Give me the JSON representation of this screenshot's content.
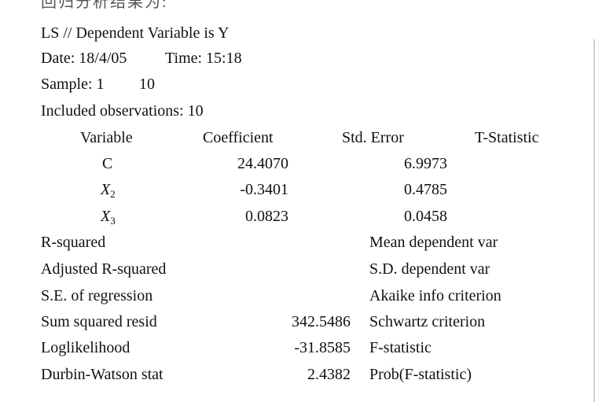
{
  "title": "回归分析结果为:",
  "header": {
    "method_line": "LS // Dependent Variable is Y",
    "date": "Date: 18/4/05",
    "time": "Time: 15:18",
    "sample_label": "Sample: 1",
    "sample_end": "10",
    "observations": "Included observations: 10"
  },
  "table": {
    "columns": [
      "Variable",
      "Coefficient",
      "Std. Error",
      "T-Statistic"
    ],
    "rows": [
      {
        "variable": "C",
        "sub": "",
        "coefficient": "24.4070",
        "std_error": "6.9973"
      },
      {
        "variable": "X",
        "sub": "2",
        "coefficient": "-0.3401",
        "std_error": "0.4785"
      },
      {
        "variable": "X",
        "sub": "3",
        "coefficient": "0.0823",
        "std_error": "0.0458"
      }
    ]
  },
  "stats": [
    {
      "label": "R-squared",
      "value": "",
      "right_label": "Mean dependent var"
    },
    {
      "label": "Adjusted R-squared",
      "value": "",
      "right_label": "S.D. dependent var"
    },
    {
      "label": "S.E. of regression",
      "value": "",
      "right_label": "Akaike info criterion"
    },
    {
      "label": "Sum squared resid",
      "value": "342.5486",
      "right_label": "Schwartz criterion"
    },
    {
      "label": "Loglikelihood",
      "value": "-31.8585",
      "right_label": "F-statistic"
    },
    {
      "label": "Durbin-Watson stat",
      "value": "2.4382",
      "right_label": "Prob(F-statistic)"
    }
  ]
}
